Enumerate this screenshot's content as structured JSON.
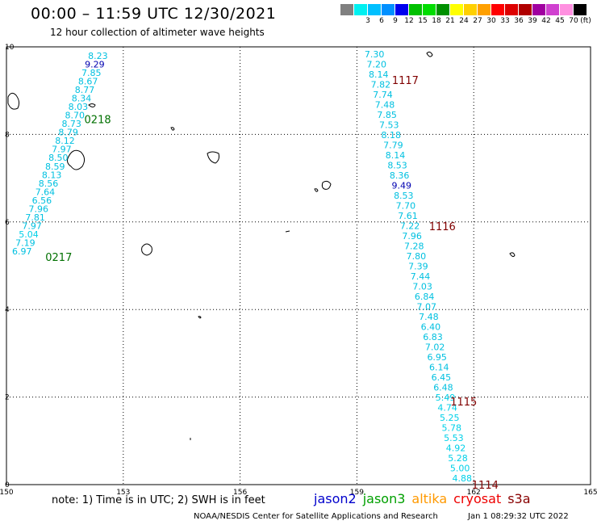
{
  "header": {
    "title": "00:00 – 11:59 UTC 12/30/2021",
    "subtitle": "12 hour collection of altimeter wave heights"
  },
  "legend": {
    "unit": "(ft)",
    "items": [
      {
        "label": "",
        "color": "#808080"
      },
      {
        "label": "3",
        "color": "#00f0f0"
      },
      {
        "label": "6",
        "color": "#00c0ff"
      },
      {
        "label": "9",
        "color": "#0090ff"
      },
      {
        "label": "12",
        "color": "#0000ee"
      },
      {
        "label": "15",
        "color": "#00c000"
      },
      {
        "label": "18",
        "color": "#00dd00"
      },
      {
        "label": "21",
        "color": "#009000"
      },
      {
        "label": "24",
        "color": "#ffff00"
      },
      {
        "label": "27",
        "color": "#ffd000"
      },
      {
        "label": "30",
        "color": "#ffa000"
      },
      {
        "label": "33",
        "color": "#ff0000"
      },
      {
        "label": "36",
        "color": "#dd0000"
      },
      {
        "label": "39",
        "color": "#b00000"
      },
      {
        "label": "42",
        "color": "#a000a0"
      },
      {
        "label": "45",
        "color": "#d040d0"
      },
      {
        "label": "70",
        "color": "#ff90e0"
      },
      {
        "label": "",
        "color": "#000000"
      }
    ]
  },
  "axes": {
    "lon_ticks": [
      "150",
      "153",
      "156",
      "159",
      "162",
      "165"
    ],
    "lat_ticks": [
      "10",
      "8",
      "6",
      "4",
      "2",
      "0"
    ],
    "lon_range": [
      150,
      165
    ],
    "lat_range": [
      0,
      10
    ]
  },
  "colors": {
    "low": "#00c0e0",
    "high": "#0000b0",
    "mid": "#00d0e8",
    "pass_west": "#007000",
    "pass_east": "#800000"
  },
  "tracks": [
    {
      "values": [
        "8.23",
        "9.29",
        "7.85",
        "8.67",
        "8.77",
        "8.34",
        "8.03",
        "8.70",
        "8.73",
        "8.79",
        "8.12",
        "7.97",
        "8.50",
        "8.59",
        "8.13",
        "8.56",
        "7.64",
        "6.56",
        "7.96",
        "7.81",
        "7.97",
        "5.04",
        "7.19",
        "6.97"
      ],
      "colors": [
        "low",
        "high",
        "low",
        "low",
        "low",
        "low",
        "low",
        "low",
        "low",
        "low",
        "low",
        "low",
        "low",
        "low",
        "low",
        "low",
        "low",
        "low",
        "low",
        "low",
        "low",
        "mid",
        "low",
        "low"
      ],
      "start": [
        152.35,
        9.8
      ],
      "end": [
        150.4,
        5.33
      ]
    },
    {
      "values": [
        "7.30",
        "7.20",
        "8.14",
        "7.82",
        "7.74",
        "7.48",
        "7.85",
        "7.53",
        "8.18",
        "7.79",
        "8.14",
        "8.53",
        "8.36",
        "9.49",
        "8.53",
        "7.70",
        "7.61",
        "7.22",
        "7.96",
        "7.28",
        "7.80",
        "7.39",
        "7.44",
        "7.03",
        "6.84",
        "7.07",
        "7.48",
        "6.40",
        "6.83",
        "7.02",
        "6.95",
        "6.14",
        "6.45",
        "6.48",
        "5.49",
        "4.74",
        "5.25",
        "5.78",
        "5.53",
        "4.92",
        "5.28",
        "5.00",
        "4.88"
      ],
      "colors": [
        "low",
        "low",
        "low",
        "low",
        "low",
        "low",
        "low",
        "low",
        "low",
        "low",
        "low",
        "low",
        "low",
        "high",
        "low",
        "low",
        "low",
        "low",
        "low",
        "low",
        "low",
        "low",
        "low",
        "low",
        "low",
        "low",
        "low",
        "low",
        "low",
        "low",
        "low",
        "low",
        "low",
        "low",
        "mid",
        "mid",
        "mid",
        "mid",
        "mid",
        "mid",
        "mid",
        "mid",
        "mid"
      ],
      "start": [
        159.45,
        9.83
      ],
      "end": [
        161.7,
        0.15
      ]
    }
  ],
  "passes": [
    {
      "label": "0218",
      "lon": 152.0,
      "lat": 8.35,
      "color": "pass_west"
    },
    {
      "label": "0217",
      "lon": 151.0,
      "lat": 5.2,
      "color": "pass_west"
    },
    {
      "label": "1117",
      "lon": 159.9,
      "lat": 9.24,
      "color": "pass_east"
    },
    {
      "label": "1116",
      "lon": 160.85,
      "lat": 5.9,
      "color": "pass_east"
    },
    {
      "label": "1115",
      "lon": 161.4,
      "lat": 1.9,
      "color": "pass_east"
    },
    {
      "label": "1114",
      "lon": 161.95,
      "lat": 0.0,
      "color": "pass_east"
    }
  ],
  "note": "note:  1) Time is in UTC;  2) SWH is in feet",
  "satellites": [
    {
      "name": "jason2",
      "color": "#0000cc"
    },
    {
      "name": "jason3",
      "color": "#00a000"
    },
    {
      "name": "altika",
      "color": "#ff9900"
    },
    {
      "name": "cryosat",
      "color": "#ee0000"
    },
    {
      "name": "s3a",
      "color": "#880000"
    }
  ],
  "footer": {
    "credit": "NOAA/NESDIS Center for Satellite Applications and Research",
    "timestamp": "Jan  1 08:29:32 UTC 2022"
  }
}
